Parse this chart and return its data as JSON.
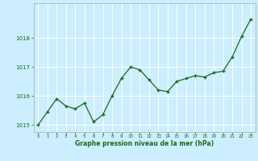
{
  "x": [
    0,
    1,
    2,
    3,
    4,
    5,
    6,
    7,
    8,
    9,
    10,
    11,
    12,
    13,
    14,
    15,
    16,
    17,
    18,
    19,
    20,
    21,
    22,
    23
  ],
  "y": [
    1015.0,
    1015.45,
    1015.9,
    1015.65,
    1015.55,
    1015.75,
    1015.1,
    1015.35,
    1016.0,
    1016.6,
    1017.0,
    1016.9,
    1016.55,
    1016.2,
    1016.15,
    1016.5,
    1016.6,
    1016.7,
    1016.65,
    1016.8,
    1016.85,
    1017.35,
    1018.05,
    1018.65
  ],
  "line_color": "#1a6b1a",
  "marker_color": "#1a6b1a",
  "bg_color": "#cceeff",
  "grid_color": "#ffffff",
  "border_color": "#aaaaaa",
  "xlabel": "Graphe pression niveau de la mer (hPa)",
  "xlabel_color": "#1a6b1a",
  "tick_label_color": "#1a6b1a",
  "ylim": [
    1014.75,
    1019.2
  ],
  "yticks": [
    1015,
    1016,
    1017,
    1018
  ],
  "xlim": [
    -0.5,
    23.5
  ],
  "xticks": [
    0,
    1,
    2,
    3,
    4,
    5,
    6,
    7,
    8,
    9,
    10,
    11,
    12,
    13,
    14,
    15,
    16,
    17,
    18,
    19,
    20,
    21,
    22,
    23
  ]
}
